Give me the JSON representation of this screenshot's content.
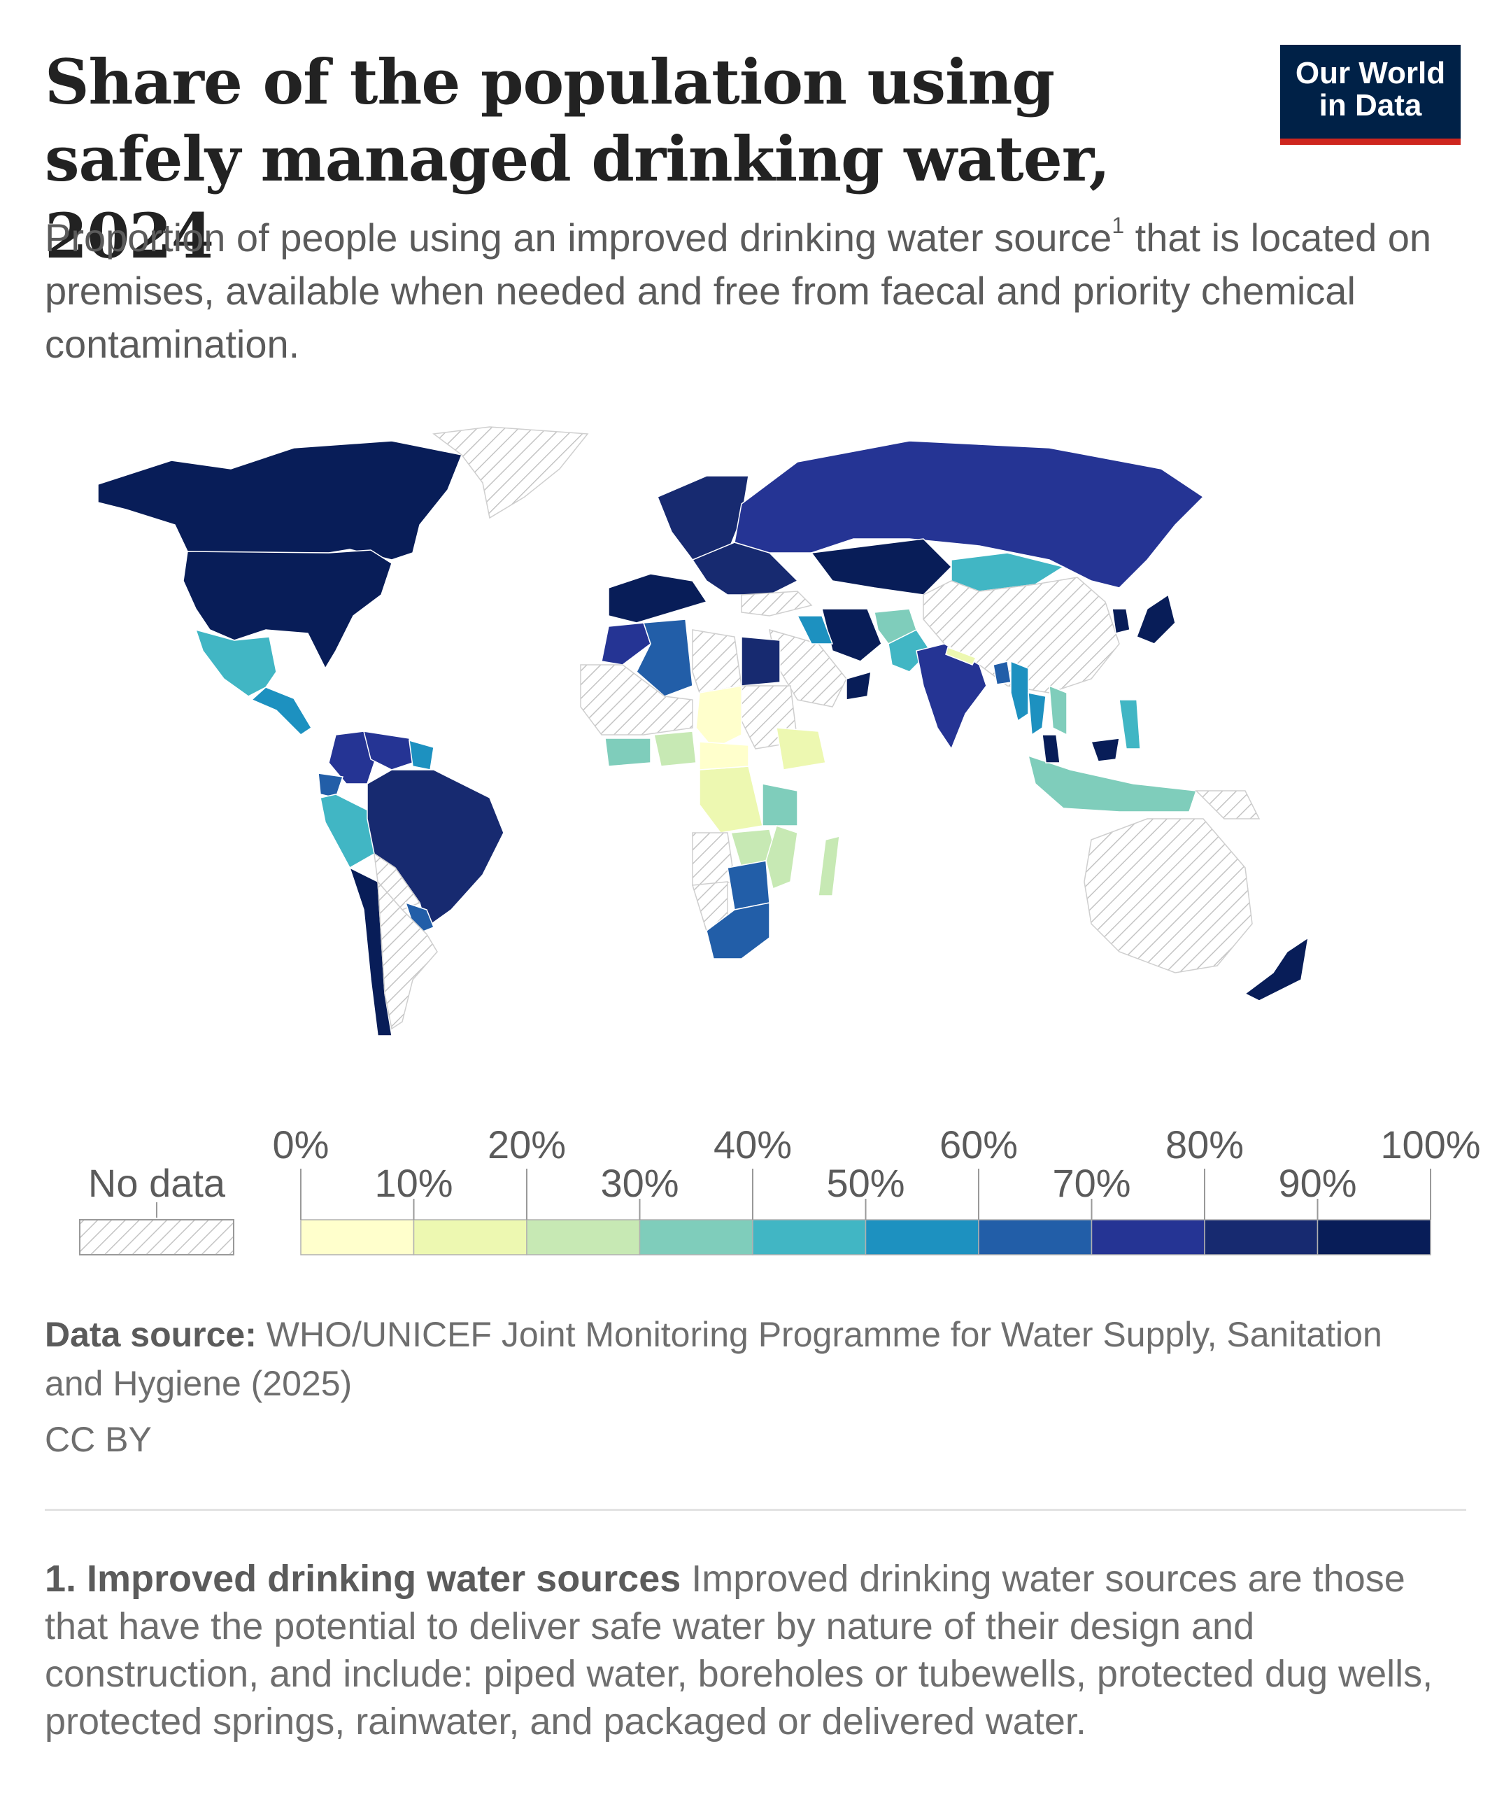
{
  "header": {
    "title": "Share of the population using safely managed drinking water, 2024",
    "subtitle_text": "Proportion of people using an improved drinking water source",
    "subtitle_marker": "1",
    "subtitle_rest": " that is located on premises, available when needed and free from faecal and priority chemical contamination.",
    "logo_line1": "Our World",
    "logo_line2": "in Data"
  },
  "legend": {
    "no_data_label": "No data",
    "top_labels": [
      "0%",
      "20%",
      "40%",
      "60%",
      "80%",
      "100%"
    ],
    "bottom_labels": [
      "10%",
      "30%",
      "50%",
      "70%",
      "90%"
    ],
    "bins": [
      {
        "from": 0,
        "to": 10,
        "color": "#ffffcc"
      },
      {
        "from": 10,
        "to": 20,
        "color": "#edf8b1"
      },
      {
        "from": 20,
        "to": 30,
        "color": "#c7e9b4"
      },
      {
        "from": 30,
        "to": 40,
        "color": "#7fcdbb"
      },
      {
        "from": 40,
        "to": 50,
        "color": "#41b6c4"
      },
      {
        "from": 50,
        "to": 60,
        "color": "#1d91c0"
      },
      {
        "from": 60,
        "to": 70,
        "color": "#225ea8"
      },
      {
        "from": 70,
        "to": 80,
        "color": "#253494"
      },
      {
        "from": 80,
        "to": 90,
        "color": "#172a70"
      },
      {
        "from": 90,
        "to": 100,
        "color": "#081d58"
      }
    ]
  },
  "chart_data": {
    "type": "choropleth",
    "value_unit": "%",
    "year": 2024,
    "regions": [
      {
        "name": "Canada",
        "bin": 9
      },
      {
        "name": "United States",
        "bin": 9
      },
      {
        "name": "Greenland",
        "bin": null
      },
      {
        "name": "Mexico",
        "bin": 4
      },
      {
        "name": "Central America",
        "bin": 5
      },
      {
        "name": "Colombia",
        "bin": 7
      },
      {
        "name": "Venezuela",
        "bin": 7
      },
      {
        "name": "Guyana / Suriname",
        "bin": 5
      },
      {
        "name": "Ecuador",
        "bin": 6
      },
      {
        "name": "Peru",
        "bin": 4
      },
      {
        "name": "Brazil",
        "bin": 8
      },
      {
        "name": "Bolivia",
        "bin": null
      },
      {
        "name": "Paraguay",
        "bin": 6
      },
      {
        "name": "Chile",
        "bin": 9
      },
      {
        "name": "Argentina",
        "bin": null
      },
      {
        "name": "Western Europe",
        "bin": 9
      },
      {
        "name": "Northern Europe",
        "bin": 8
      },
      {
        "name": "Eastern Europe",
        "bin": 8
      },
      {
        "name": "Russia",
        "bin": 7
      },
      {
        "name": "Kazakhstan",
        "bin": 9
      },
      {
        "name": "Mongolia",
        "bin": 4
      },
      {
        "name": "China",
        "bin": null
      },
      {
        "name": "Japan",
        "bin": 9
      },
      {
        "name": "Korea",
        "bin": 9
      },
      {
        "name": "Turkey",
        "bin": null
      },
      {
        "name": "Iran",
        "bin": 9
      },
      {
        "name": "Saudi Arabia",
        "bin": null
      },
      {
        "name": "Oman",
        "bin": 9
      },
      {
        "name": "Iraq",
        "bin": 5
      },
      {
        "name": "Afghanistan",
        "bin": 3
      },
      {
        "name": "Pakistan",
        "bin": 4
      },
      {
        "name": "India",
        "bin": 7
      },
      {
        "name": "Nepal",
        "bin": 1
      },
      {
        "name": "Bangladesh",
        "bin": 6
      },
      {
        "name": "Myanmar",
        "bin": 5
      },
      {
        "name": "Thailand",
        "bin": 5
      },
      {
        "name": "Vietnam",
        "bin": 3
      },
      {
        "name": "Philippines",
        "bin": 4
      },
      {
        "name": "Indonesia",
        "bin": 3
      },
      {
        "name": "Malaysia",
        "bin": 9
      },
      {
        "name": "Papua New Guinea",
        "bin": null
      },
      {
        "name": "Australia",
        "bin": null
      },
      {
        "name": "New Zealand",
        "bin": 9
      },
      {
        "name": "Morocco",
        "bin": 7
      },
      {
        "name": "Algeria",
        "bin": 6
      },
      {
        "name": "Libya",
        "bin": null
      },
      {
        "name": "Egypt",
        "bin": 8
      },
      {
        "name": "Sudan",
        "bin": null
      },
      {
        "name": "West Sahel",
        "bin": null
      },
      {
        "name": "Chad",
        "bin": 0
      },
      {
        "name": "Nigeria",
        "bin": 2
      },
      {
        "name": "Ghana / Ivory Coast",
        "bin": 3
      },
      {
        "name": "Ethiopia",
        "bin": 1
      },
      {
        "name": "DR Congo",
        "bin": 1
      },
      {
        "name": "Central African Rep.",
        "bin": 0
      },
      {
        "name": "Tanzania",
        "bin": 3
      },
      {
        "name": "Angola",
        "bin": null
      },
      {
        "name": "Zambia / Malawi",
        "bin": 2
      },
      {
        "name": "Mozambique",
        "bin": 2
      },
      {
        "name": "Madagascar",
        "bin": 2
      },
      {
        "name": "Namibia",
        "bin": null
      },
      {
        "name": "Botswana / Zimbabwe",
        "bin": 6
      },
      {
        "name": "South Africa",
        "bin": 6
      }
    ]
  },
  "footer": {
    "source_label": "Data source:",
    "source_text": " WHO/UNICEF Joint Monitoring Programme for Water Supply, Sanitation and Hygiene (2025)",
    "license": "CC BY",
    "footnote_title": "1. Improved drinking water sources",
    "footnote_text": " Improved drinking water sources are those that have the potential to deliver safe water by nature of their design and construction, and include: piped water, boreholes or tubewells, protected dug wells, protected springs, rainwater, and packaged or delivered water."
  }
}
